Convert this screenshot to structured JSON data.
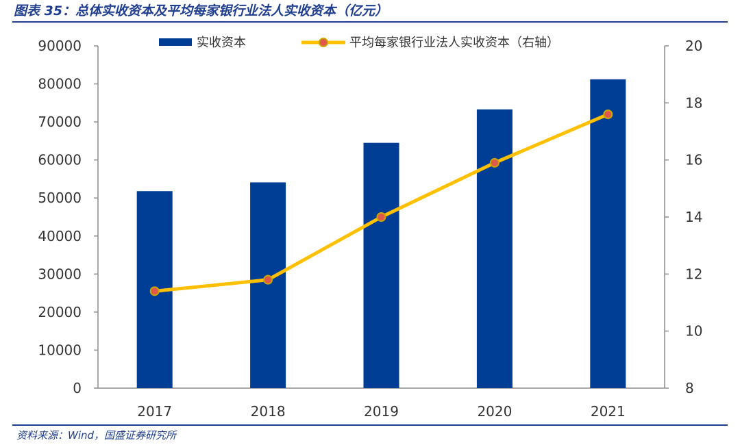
{
  "title": "图表 35：总体实收资本及平均每家银行业法人实收资本（亿元）",
  "source": "资料来源：Wind，国盛证券研究所",
  "colors": {
    "bar": "#003D95",
    "line": "#FFC000",
    "marker_fill": "#E0584C",
    "marker_edge": "#C9A600",
    "rule": "#1F3E8F",
    "axis": "#8C8C8C"
  },
  "chart_data": {
    "type": "bar",
    "categories": [
      "2017",
      "2018",
      "2019",
      "2020",
      "2021"
    ],
    "series": [
      {
        "name": "实收资本",
        "type": "bar",
        "axis": "left",
        "values": [
          51800,
          54100,
          64500,
          73300,
          81200
        ]
      },
      {
        "name": "平均每家银行业法人实收资本（右轴）",
        "type": "line",
        "axis": "right",
        "values": [
          11.4,
          11.8,
          14.0,
          15.9,
          17.6
        ]
      }
    ],
    "ylim_left": [
      0,
      90000
    ],
    "yticks_left": [
      "90000",
      "80000",
      "70000",
      "60000",
      "50000",
      "40000",
      "30000",
      "20000",
      "10000",
      "0"
    ],
    "ylim_right": [
      8,
      20
    ],
    "yticks_right": [
      "20",
      "18",
      "16",
      "14",
      "12",
      "10",
      "8"
    ],
    "legend_position": "top",
    "grid": false
  }
}
